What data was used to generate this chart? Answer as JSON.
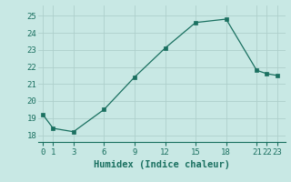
{
  "x": [
    0,
    1,
    3,
    6,
    9,
    12,
    15,
    18,
    21,
    22,
    23
  ],
  "y": [
    19.2,
    18.4,
    18.2,
    19.5,
    21.4,
    23.1,
    24.6,
    24.8,
    21.8,
    21.6,
    21.5
  ],
  "xticks": [
    0,
    1,
    3,
    6,
    9,
    12,
    15,
    18,
    21,
    22,
    23
  ],
  "yticks": [
    18,
    19,
    20,
    21,
    22,
    23,
    24,
    25
  ],
  "xlim": [
    -0.5,
    23.8
  ],
  "ylim": [
    17.6,
    25.6
  ],
  "xlabel": "Humidex (Indice chaleur)",
  "line_color": "#1a7060",
  "marker_color": "#1a7060",
  "bg_color": "#c8e8e4",
  "grid_color": "#aed0cc",
  "tick_label_color": "#1a7060",
  "xlabel_color": "#1a7060"
}
